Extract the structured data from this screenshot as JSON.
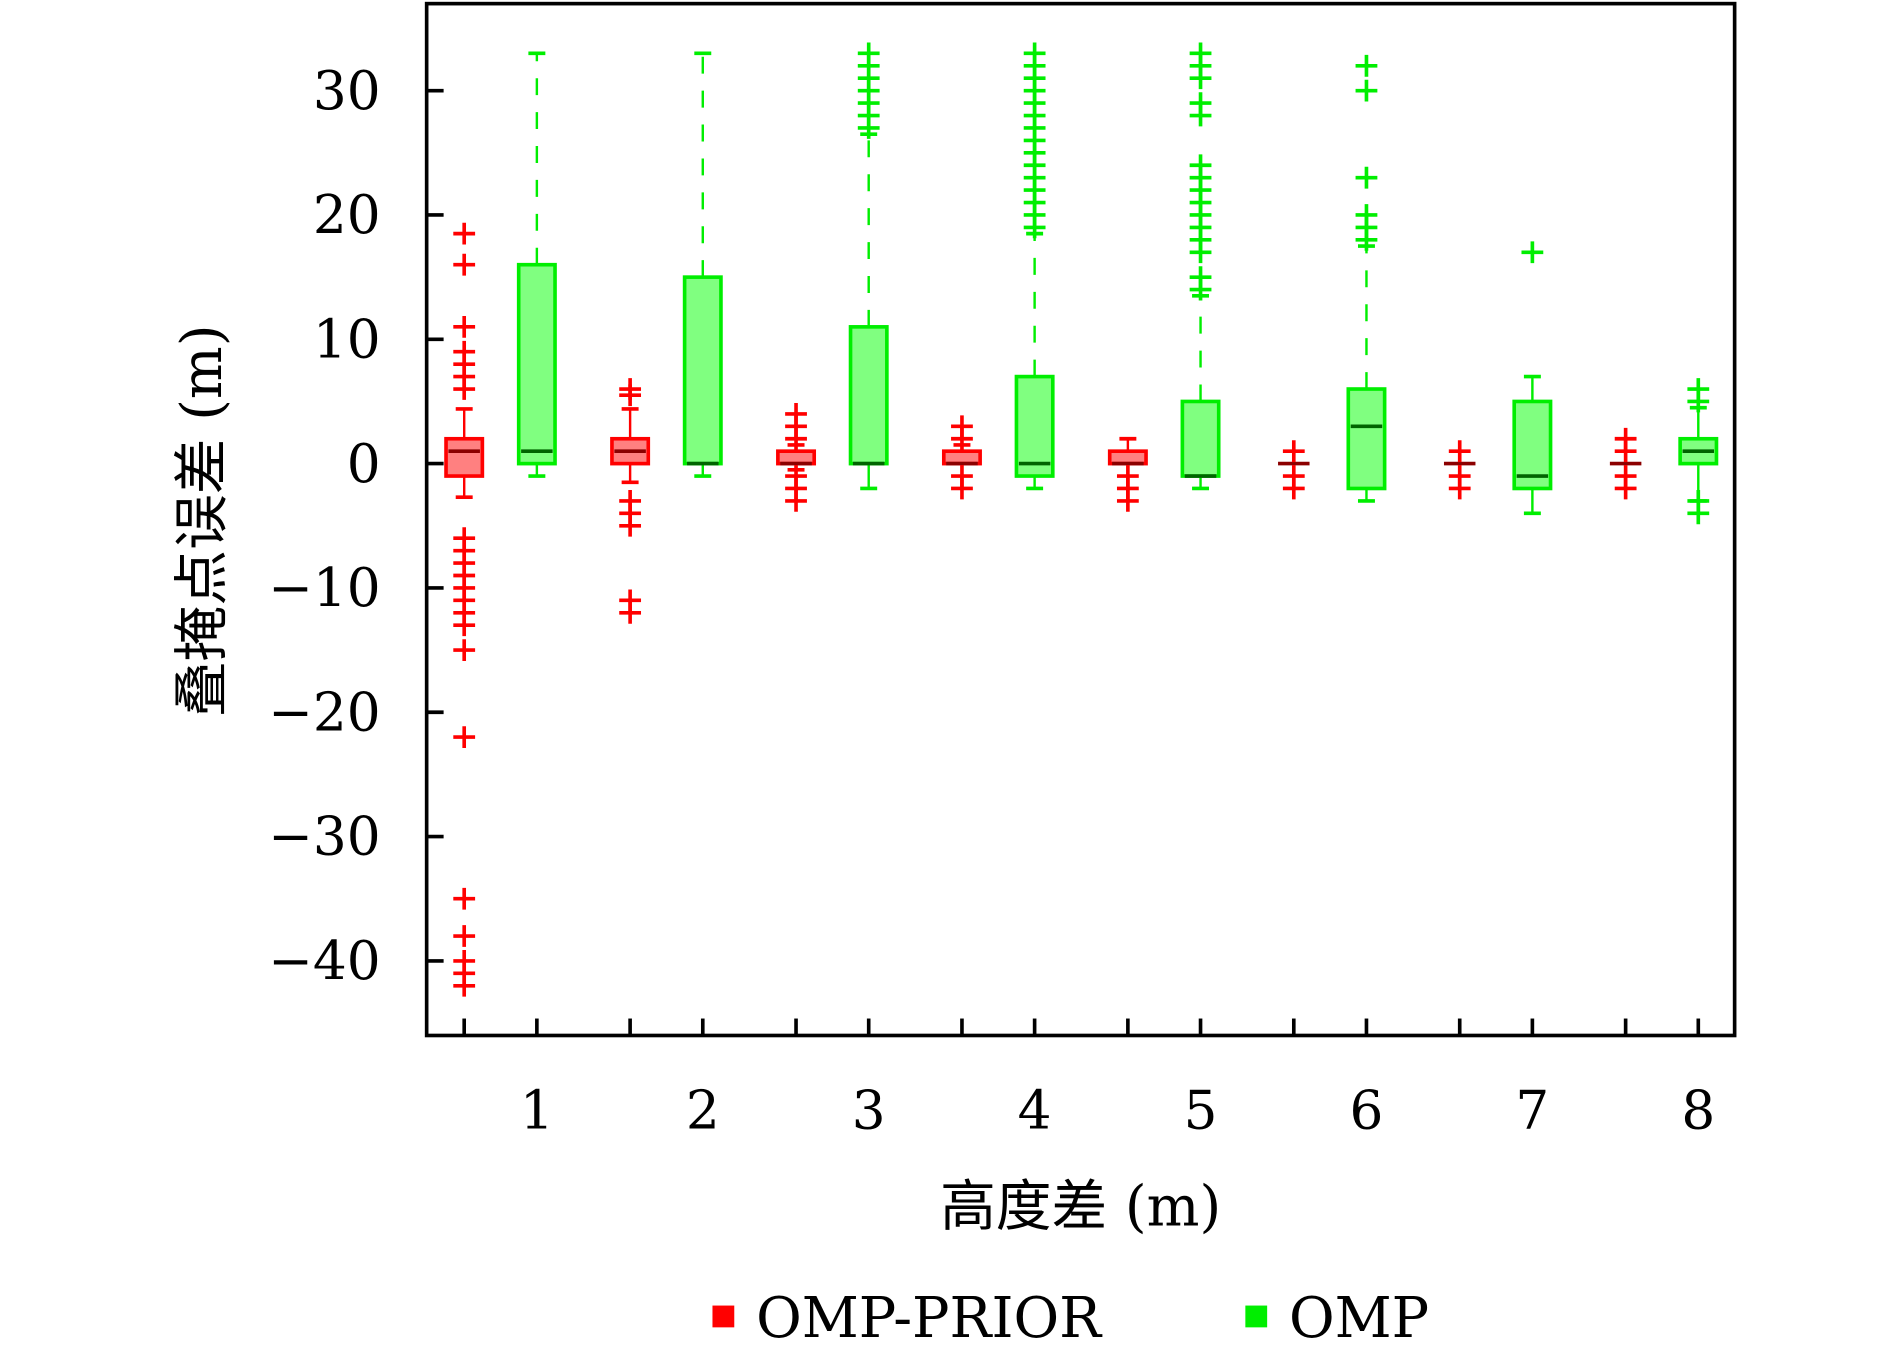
{
  "chart_data": {
    "type": "boxplot",
    "xlabel": "高度差 (m)",
    "ylabel": "叠掩点误差 (m)",
    "ylim": [
      -46,
      37
    ],
    "yticks": [
      -40,
      -30,
      -20,
      -10,
      0,
      10,
      20,
      30
    ],
    "ytick_labels": [
      "−40",
      "−30",
      "−20",
      "−10",
      "0",
      "10",
      "20",
      "30"
    ],
    "categories": [
      "1",
      "2",
      "3",
      "4",
      "5",
      "6",
      "7",
      "8"
    ],
    "legend_position": "bottom",
    "series": [
      {
        "name": "OMP-PRIOR",
        "color": "#ff0000",
        "fill": "#ff8080",
        "median_color": "#8b0000",
        "boxes": [
          {
            "q1": -1,
            "median": 1,
            "q3": 2,
            "low": -2.7,
            "high": 4.4,
            "outliers": [
              18.5,
              16,
              11,
              9,
              8,
              7,
              6,
              -6,
              -7,
              -8,
              -9,
              -10,
              -11,
              -12,
              -13,
              -15,
              -22,
              -35,
              -38,
              -40,
              -41,
              -42
            ]
          },
          {
            "q1": 0,
            "median": 1,
            "q3": 2,
            "low": -1.5,
            "high": 4.4,
            "outliers": [
              6,
              5.5,
              -3,
              -4,
              -5,
              -11,
              -12
            ]
          },
          {
            "q1": 0,
            "median": 0,
            "q3": 1,
            "low": -0.5,
            "high": 1.5,
            "outliers": [
              2,
              3,
              4,
              -1,
              -2,
              -3
            ]
          },
          {
            "q1": 0,
            "median": 0,
            "q3": 1,
            "low": 0,
            "high": 1.5,
            "outliers": [
              2,
              3,
              -1,
              -2
            ]
          },
          {
            "q1": 0,
            "median": 0,
            "q3": 1,
            "low": 0,
            "high": 2,
            "outliers": [
              -1,
              -2,
              -3
            ]
          },
          {
            "q1": 0,
            "median": 0,
            "q3": 0,
            "low": 0,
            "high": 0,
            "outliers": [
              1,
              -1,
              -2
            ]
          },
          {
            "q1": 0,
            "median": 0,
            "q3": 0,
            "low": 0,
            "high": 0,
            "outliers": [
              1,
              -1,
              -2
            ]
          },
          {
            "q1": 0,
            "median": 0,
            "q3": 0,
            "low": 0,
            "high": 0,
            "outliers": [
              2,
              1,
              -1,
              -2
            ]
          }
        ]
      },
      {
        "name": "OMP",
        "color": "#00ee00",
        "fill": "#80ff80",
        "median_color": "#006400",
        "boxes": [
          {
            "q1": 0,
            "median": 1,
            "q3": 16,
            "low": -1,
            "high": 33,
            "outliers": []
          },
          {
            "q1": 0,
            "median": 0,
            "q3": 15,
            "low": -1,
            "high": 33,
            "outliers": []
          },
          {
            "q1": 0,
            "median": 0,
            "q3": 11,
            "low": -2,
            "high": 26.5,
            "outliers": [
              27,
              28,
              29,
              30,
              31,
              32,
              33
            ]
          },
          {
            "q1": -1,
            "median": 0,
            "q3": 7,
            "low": -2,
            "high": 18.5,
            "outliers": [
              19,
              20,
              21,
              22,
              23,
              24,
              25,
              26,
              27,
              28,
              29,
              30,
              31,
              32,
              33
            ]
          },
          {
            "q1": -1,
            "median": -1,
            "q3": 5,
            "low": -2,
            "high": 13.5,
            "outliers": [
              14,
              15,
              17,
              18,
              19,
              20,
              21,
              22,
              23,
              24,
              28,
              29,
              31,
              32,
              33
            ]
          },
          {
            "q1": -2,
            "median": 3,
            "q3": 6,
            "low": -3,
            "high": 17.5,
            "outliers": [
              18,
              19,
              20,
              23,
              30,
              32
            ]
          },
          {
            "q1": -2,
            "median": -1,
            "q3": 5,
            "low": -4,
            "high": 7,
            "outliers": [
              17
            ]
          },
          {
            "q1": 0,
            "median": 1,
            "q3": 2,
            "low": -3,
            "high": 4.5,
            "outliers": [
              5,
              6,
              -3,
              -4
            ]
          }
        ]
      }
    ]
  }
}
